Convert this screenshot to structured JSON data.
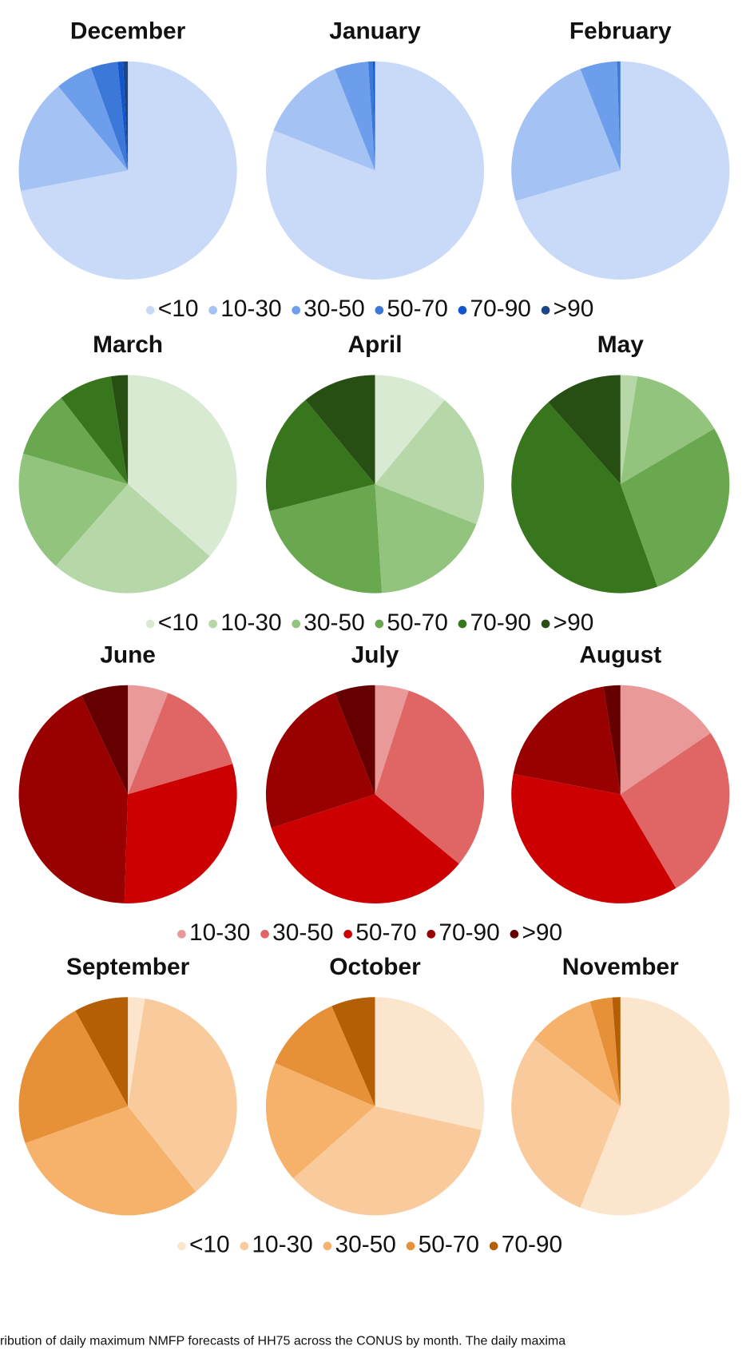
{
  "chart_data": [
    {
      "type": "pie",
      "title": "December",
      "values": [
        72,
        17,
        5.5,
        4,
        0.8,
        0.7
      ]
    },
    {
      "type": "pie",
      "title": "January",
      "values": [
        81,
        13,
        5,
        0.7,
        0.3
      ]
    },
    {
      "type": "pie",
      "title": "February",
      "values": [
        70.5,
        23.5,
        5.5,
        0.5
      ]
    },
    {
      "type": "pie",
      "title": "March",
      "values": [
        36.5,
        25,
        18,
        10,
        8,
        2.5
      ]
    },
    {
      "type": "pie",
      "title": "April",
      "values": [
        11,
        20,
        18,
        22,
        18,
        11
      ]
    },
    {
      "type": "pie",
      "title": "May",
      "values": [
        0,
        2.5,
        14,
        28,
        44,
        11.5
      ]
    },
    {
      "type": "pie",
      "title": "June",
      "values": [
        6,
        14.5,
        30,
        42.5,
        7
      ]
    },
    {
      "type": "pie",
      "title": "July",
      "values": [
        5,
        31,
        34,
        24,
        6
      ]
    },
    {
      "type": "pie",
      "title": "August",
      "values": [
        15.5,
        26,
        36.5,
        19.5,
        2.5
      ]
    },
    {
      "type": "pie",
      "title": "September",
      "values": [
        2.5,
        36.8,
        30.2,
        22.5,
        8
      ]
    },
    {
      "type": "pie",
      "title": "October",
      "values": [
        28.5,
        35,
        18,
        12,
        6.5
      ]
    },
    {
      "type": "pie",
      "title": "November",
      "values": [
        56,
        29.5,
        10,
        3.3,
        1.2
      ]
    }
  ],
  "legends": [
    {
      "labels": [
        "<10",
        "10-30",
        "30-50",
        "50-70",
        "70-90",
        ">90"
      ],
      "colors": [
        "#c9daf8",
        "#a4c2f4",
        "#6d9eeb",
        "#3c78d8",
        "#1155cc",
        "#1c4587"
      ]
    },
    {
      "labels": [
        "<10",
        "10-30",
        "30-50",
        "50-70",
        "70-90",
        ">90"
      ],
      "colors": [
        "#d9ead3",
        "#b6d7a8",
        "#93c47d",
        "#6aa84f",
        "#38761d",
        "#274e13"
      ]
    },
    {
      "labels": [
        "10-30",
        "30-50",
        "50-70",
        "70-90",
        ">90"
      ],
      "colors": [
        "#ea9999",
        "#e06666",
        "#cc0000",
        "#990000",
        "#660000"
      ]
    },
    {
      "labels": [
        "<10",
        "10-30",
        "30-50",
        "50-70",
        "70-90"
      ],
      "colors": [
        "#fce5cd",
        "#f9cb9c",
        "#f6b26b",
        "#e69138",
        "#b45f06"
      ]
    }
  ],
  "caption": "ribution of daily maximum NMFP forecasts of HH75 across the CONUS by month. The daily maxima"
}
